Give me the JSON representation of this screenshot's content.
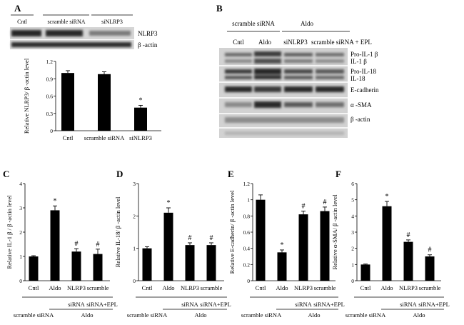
{
  "panelA": {
    "letter": "A",
    "blot_groups": [
      "Cntl",
      "scramble siRNA",
      "siNLRP3"
    ],
    "blot_labels": [
      "NLRP3",
      "β -actin"
    ],
    "chart_data": {
      "type": "bar",
      "categories": [
        "Cntl",
        "scramble siRNA",
        "siNLRP3"
      ],
      "values": [
        1.0,
        0.98,
        0.4
      ],
      "errors": [
        0.04,
        0.04,
        0.04
      ],
      "stars": [
        "",
        "",
        "*"
      ],
      "ylabel": "Relative NLRP3/ β -actin level",
      "ylim": [
        0,
        1.2
      ],
      "yticks": [
        "0",
        "0.3",
        "0.6",
        "0.9",
        "1.2"
      ],
      "grid": false
    }
  },
  "panelB": {
    "letter": "B",
    "group_left": "scramble siRNA",
    "group_right": "Aldo",
    "lanes": [
      "Cntl",
      "Aldo",
      "siNLRP3",
      "scramble siRNA + EPL"
    ],
    "blot_labels": [
      "Pro-IL-1 β",
      "IL-1 β",
      "Pro-IL-18",
      "IL-18",
      "E-cadherin",
      "α -SMA",
      "β -actin"
    ]
  },
  "bottom_groups": {
    "row1": [
      "siRNA",
      "siRNA+EPL"
    ],
    "row2_left": "scramble siRNA",
    "row2_right": "Aldo"
  },
  "panels": [
    {
      "letter": "C",
      "chart_data": {
        "type": "bar",
        "categories": [
          "Cntl",
          "Aldo",
          "NLRP3",
          "scramble"
        ],
        "values": [
          1.0,
          2.9,
          1.2,
          1.1
        ],
        "errors": [
          0.03,
          0.18,
          0.12,
          0.2
        ],
        "stars": [
          "",
          "*",
          "#",
          "#"
        ],
        "ylabel": "Relative IL-1 β / β -actin level",
        "ylim": [
          0,
          4
        ],
        "yticks": [
          "0",
          "1",
          "2",
          "3",
          "4"
        ],
        "grid": false
      }
    },
    {
      "letter": "D",
      "chart_data": {
        "type": "bar",
        "categories": [
          "Cntl",
          "Aldo",
          "NLRP3",
          "scramble"
        ],
        "values": [
          1.0,
          2.1,
          1.1,
          1.1
        ],
        "errors": [
          0.05,
          0.15,
          0.07,
          0.07
        ],
        "stars": [
          "",
          "*",
          "#",
          "#"
        ],
        "ylabel": "Relative IL-18/ β -actin level",
        "ylim": [
          0,
          3
        ],
        "yticks": [
          "0",
          "1",
          "2",
          "3"
        ],
        "grid": false
      }
    },
    {
      "letter": "E",
      "chart_data": {
        "type": "bar",
        "categories": [
          "Cntl",
          "Aldo",
          "NLRP3",
          "scramble"
        ],
        "values": [
          1.0,
          0.35,
          0.82,
          0.86
        ],
        "errors": [
          0.06,
          0.03,
          0.04,
          0.05
        ],
        "stars": [
          "",
          "*",
          "#",
          "#"
        ],
        "ylabel": "Relative E-cadherin/ β -actin level",
        "ylim": [
          0,
          1.2
        ],
        "yticks": [
          "0",
          "0.2",
          "0.4",
          "0.6",
          "0.8",
          "1",
          "1.2"
        ],
        "grid": false
      }
    },
    {
      "letter": "F",
      "chart_data": {
        "type": "bar",
        "categories": [
          "Cntl",
          "Aldo",
          "NLRP3",
          "scramble"
        ],
        "values": [
          1.0,
          4.6,
          2.4,
          1.5
        ],
        "errors": [
          0.03,
          0.3,
          0.12,
          0.1
        ],
        "stars": [
          "",
          "*",
          "#",
          "#"
        ],
        "ylabel": "Relative α-SMA/ β -actin level",
        "ylim": [
          0,
          6
        ],
        "yticks": [
          "0",
          "1",
          "2",
          "3",
          "4",
          "5",
          "6"
        ],
        "grid": false
      }
    }
  ]
}
